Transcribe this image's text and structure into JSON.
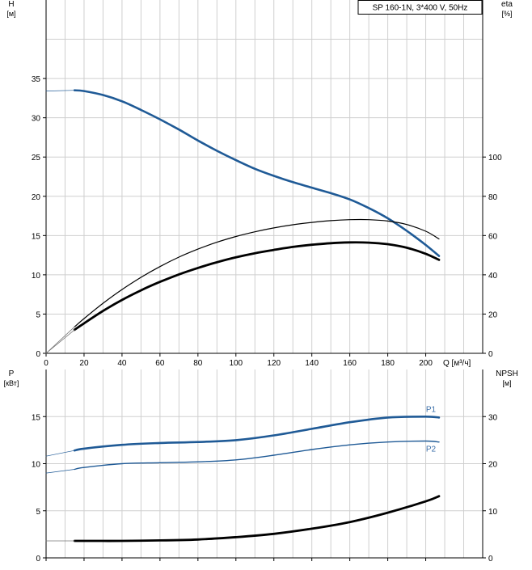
{
  "colors": {
    "grid": "#cfcfcf",
    "axis": "#000000",
    "curve_blue": "#1f5a96",
    "curve_black": "#000000",
    "series_label": "#3a6ea8",
    "thin_line": "#777777"
  },
  "chart_data": [
    {
      "type": "line",
      "panel": "head-efficiency",
      "title": "SP 160-1N, 3*400 V, 50Hz",
      "xlabel": "Q [м³/ч]",
      "xlim": [
        0,
        230
      ],
      "x_ticks": [
        0,
        20,
        40,
        60,
        80,
        100,
        120,
        140,
        160,
        180,
        200
      ],
      "y_left": {
        "label_line1": "H",
        "label_line2": "[м]",
        "lim": [
          0,
          45
        ],
        "ticks": [
          0,
          5,
          10,
          15,
          20,
          25,
          30,
          35
        ]
      },
      "y_right": {
        "label_line1": "eta",
        "label_line2": "[%]",
        "lim": [
          0,
          180
        ],
        "ticks": [
          0,
          20,
          40,
          60,
          80,
          100
        ]
      },
      "grid": true,
      "series": [
        {
          "axis": "left",
          "color": "blue",
          "x": [
            15,
            20,
            30,
            40,
            50,
            60,
            70,
            80,
            90,
            100,
            110,
            120,
            130,
            140,
            150,
            160,
            170,
            180,
            190,
            200,
            207
          ],
          "y": [
            33.5,
            33.4,
            32.9,
            32.1,
            31.0,
            29.8,
            28.5,
            27.1,
            25.8,
            24.6,
            23.5,
            22.6,
            21.8,
            21.1,
            20.4,
            19.6,
            18.5,
            17.2,
            15.6,
            13.8,
            12.4
          ]
        },
        {
          "axis": "left",
          "color": "blue-extrapolated",
          "x": [
            0,
            15
          ],
          "y": [
            33.4,
            33.5
          ]
        },
        {
          "axis": "right",
          "color": "thin-black",
          "x": [
            15,
            20,
            30,
            40,
            50,
            60,
            70,
            80,
            90,
            100,
            110,
            120,
            130,
            140,
            150,
            160,
            170,
            180,
            190,
            200,
            207
          ],
          "y": [
            13.5,
            17.7,
            25.5,
            32.5,
            38.7,
            44.2,
            49.0,
            53.1,
            56.6,
            59.5,
            61.9,
            63.9,
            65.5,
            66.7,
            67.6,
            68.1,
            68.1,
            67.4,
            65.6,
            62.2,
            58.3
          ]
        },
        {
          "axis": "right",
          "color": "thin-black-extrapolated",
          "x": [
            0,
            15
          ],
          "y": [
            0,
            13.5
          ]
        },
        {
          "axis": "right",
          "color": "thick-black",
          "x": [
            15,
            20,
            30,
            40,
            50,
            60,
            70,
            80,
            90,
            100,
            110,
            120,
            130,
            140,
            150,
            160,
            170,
            180,
            190,
            200,
            207
          ],
          "y": [
            12.0,
            15.3,
            21.6,
            27.2,
            32.1,
            36.4,
            40.2,
            43.5,
            46.4,
            48.9,
            51.0,
            52.7,
            54.2,
            55.3,
            56.1,
            56.5,
            56.4,
            55.6,
            53.8,
            50.7,
            47.6
          ]
        },
        {
          "axis": "right",
          "color": "thick-black-extrapolated",
          "x": [
            0,
            15
          ],
          "y": [
            0,
            12.0
          ]
        }
      ]
    },
    {
      "type": "line",
      "panel": "power-npsh",
      "xlim": [
        0,
        230
      ],
      "x_ticks": [
        0,
        20,
        40,
        60,
        80,
        100,
        120,
        140,
        160,
        180,
        200
      ],
      "y_left": {
        "label_line1": "P",
        "label_line2": "[кВт]",
        "lim": [
          0,
          20
        ],
        "ticks": [
          0,
          5,
          10,
          15
        ]
      },
      "y_right": {
        "label_line1": "NPSH",
        "label_line2": "[м]",
        "lim": [
          0,
          40
        ],
        "ticks": [
          0,
          10,
          20,
          30
        ]
      },
      "grid": true,
      "series": [
        {
          "name": "P1",
          "axis": "left",
          "color": "blue",
          "x": [
            15,
            20,
            40,
            60,
            80,
            100,
            120,
            140,
            160,
            180,
            200,
            207
          ],
          "y": [
            11.4,
            11.6,
            12.0,
            12.2,
            12.3,
            12.5,
            13.0,
            13.7,
            14.4,
            14.9,
            15.0,
            14.9
          ]
        },
        {
          "axis": "left",
          "color": "blue-extrapolated",
          "x": [
            0,
            15
          ],
          "y": [
            10.8,
            11.4
          ]
        },
        {
          "name": "P2",
          "axis": "left",
          "color": "blue-thin",
          "x": [
            15,
            20,
            40,
            60,
            80,
            100,
            120,
            140,
            160,
            180,
            200,
            207
          ],
          "y": [
            9.4,
            9.6,
            10.0,
            10.1,
            10.2,
            10.4,
            10.9,
            11.5,
            12.0,
            12.3,
            12.4,
            12.3
          ]
        },
        {
          "axis": "left",
          "color": "blue-thin-extrapolated",
          "x": [
            0,
            15
          ],
          "y": [
            9.0,
            9.4
          ]
        },
        {
          "axis": "right",
          "color": "thick-black",
          "x": [
            15,
            20,
            40,
            60,
            80,
            100,
            120,
            140,
            160,
            180,
            200,
            207
          ],
          "y": [
            3.6,
            3.6,
            3.6,
            3.7,
            3.9,
            4.4,
            5.1,
            6.2,
            7.6,
            9.6,
            12.0,
            13.1
          ]
        },
        {
          "axis": "right",
          "color": "thick-black-extrapolated",
          "x": [
            0,
            15
          ],
          "y": [
            3.6,
            3.6
          ]
        }
      ]
    }
  ]
}
